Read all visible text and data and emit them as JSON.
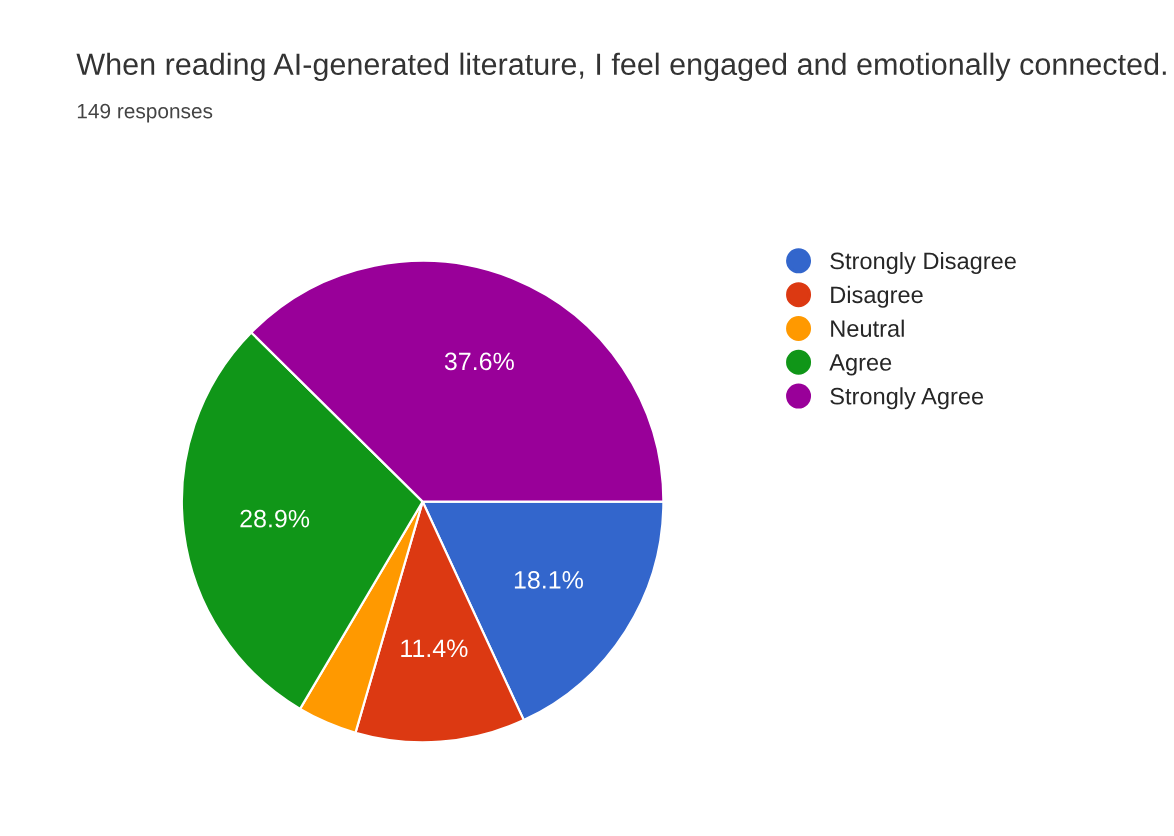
{
  "chart_data": {
    "type": "pie",
    "title": "When reading AI-generated literature, I feel engaged and emotionally connected.",
    "subtitle": "149 responses",
    "categories": [
      "Strongly Disagree",
      "Disagree",
      "Neutral",
      "Agree",
      "Strongly Agree"
    ],
    "values": [
      18.1,
      11.4,
      4.0,
      28.9,
      37.6
    ],
    "value_labels": [
      "18.1%",
      "11.4%",
      null,
      "28.9%",
      "37.6%"
    ],
    "colors": [
      "#3366cc",
      "#dc3912",
      "#ff9900",
      "#109618",
      "#990099"
    ],
    "legend": "right"
  }
}
